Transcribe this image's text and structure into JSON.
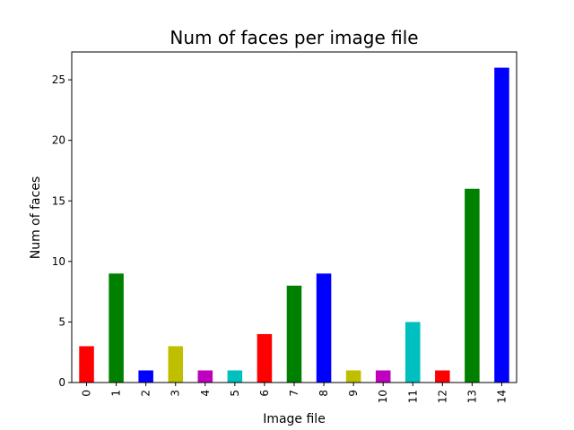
{
  "chart_data": {
    "type": "bar",
    "title": "Num of faces per image file",
    "xlabel": "Image file",
    "ylabel": "Num of faces",
    "categories": [
      "0",
      "1",
      "2",
      "3",
      "4",
      "5",
      "6",
      "7",
      "8",
      "9",
      "10",
      "11",
      "12",
      "13",
      "14"
    ],
    "values": [
      3,
      9,
      1,
      3,
      1,
      1,
      4,
      8,
      9,
      1,
      1,
      5,
      1,
      16,
      26
    ],
    "bar_colors": [
      "#ff0000",
      "#008000",
      "#0000ff",
      "#bfbf00",
      "#bf00bf",
      "#00bfbf",
      "#ff0000",
      "#008000",
      "#0000ff",
      "#bfbf00",
      "#bf00bf",
      "#00bfbf",
      "#ff0000",
      "#008000",
      "#0000ff"
    ],
    "ylim": [
      0,
      27.3
    ],
    "yticks": [
      0,
      5,
      10,
      15,
      20,
      25
    ],
    "grid": false,
    "legend": "none"
  }
}
